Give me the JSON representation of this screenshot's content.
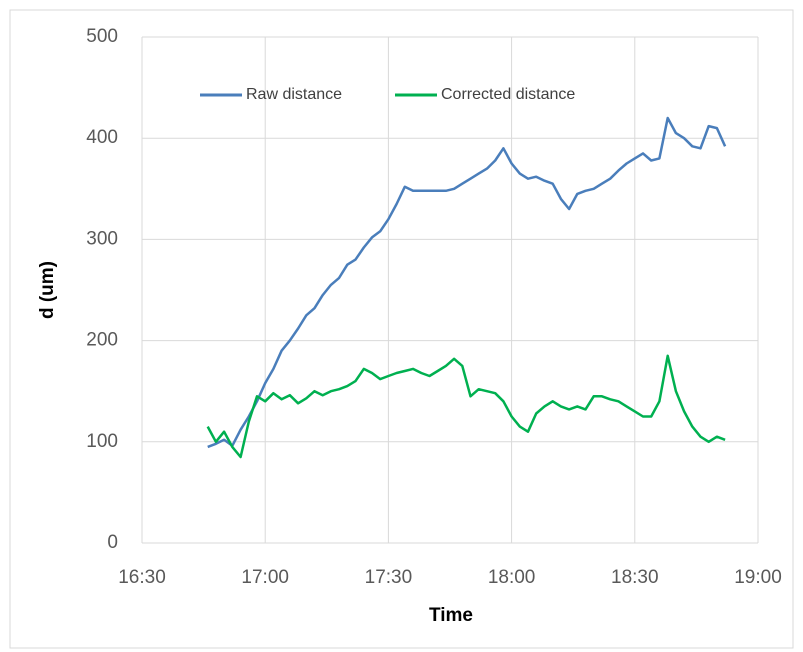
{
  "chart_data": {
    "type": "line",
    "x_label": "Time",
    "y_label": "d (um)",
    "x": [
      1006,
      1008,
      1010,
      1012,
      1014,
      1016,
      1018,
      1020,
      1022,
      1024,
      1026,
      1028,
      1030,
      1032,
      1034,
      1036,
      1038,
      1040,
      1042,
      1044,
      1046,
      1048,
      1050,
      1052,
      1054,
      1056,
      1058,
      1060,
      1062,
      1064,
      1066,
      1068,
      1070,
      1072,
      1074,
      1076,
      1078,
      1080,
      1082,
      1084,
      1086,
      1088,
      1090,
      1092,
      1094,
      1096,
      1098,
      1100,
      1102,
      1104,
      1106,
      1108,
      1110,
      1112,
      1114,
      1116,
      1118,
      1120,
      1122,
      1124,
      1126,
      1128,
      1130,
      1132
    ],
    "series": [
      {
        "name": "Raw distance",
        "color": "#4a7ebb",
        "values": [
          95,
          98,
          102,
          96,
          112,
          125,
          140,
          158,
          172,
          190,
          200,
          212,
          225,
          232,
          245,
          255,
          262,
          275,
          280,
          292,
          302,
          308,
          320,
          335,
          352,
          348,
          348,
          348,
          348,
          348,
          350,
          355,
          360,
          365,
          370,
          378,
          390,
          375,
          365,
          360,
          362,
          358,
          355,
          340,
          330,
          345,
          348,
          350,
          355,
          360,
          368,
          375,
          380,
          385,
          378,
          380,
          420,
          405,
          400,
          392,
          390,
          412,
          410,
          392
        ]
      },
      {
        "name": "Corrected distance",
        "color": "#00b050",
        "values": [
          115,
          100,
          110,
          95,
          85,
          120,
          145,
          140,
          148,
          142,
          146,
          138,
          143,
          150,
          146,
          150,
          152,
          155,
          160,
          172,
          168,
          162,
          165,
          168,
          170,
          172,
          168,
          165,
          170,
          175,
          182,
          175,
          145,
          152,
          150,
          148,
          140,
          125,
          115,
          110,
          128,
          135,
          140,
          135,
          132,
          135,
          132,
          145,
          145,
          142,
          140,
          135,
          130,
          125,
          125,
          140,
          185,
          150,
          130,
          115,
          105,
          100,
          105,
          102
        ]
      }
    ],
    "xlim": [
      990,
      1140
    ],
    "xticks": [
      {
        "value": 990,
        "label": "16:30"
      },
      {
        "value": 1020,
        "label": "17:00"
      },
      {
        "value": 1050,
        "label": "17:30"
      },
      {
        "value": 1080,
        "label": "18:00"
      },
      {
        "value": 1110,
        "label": "18:30"
      },
      {
        "value": 1140,
        "label": "19:00"
      }
    ],
    "ylim": [
      0,
      500
    ],
    "yticks": [
      0,
      100,
      200,
      300,
      400,
      500
    ],
    "grid": true,
    "legend": "top"
  }
}
